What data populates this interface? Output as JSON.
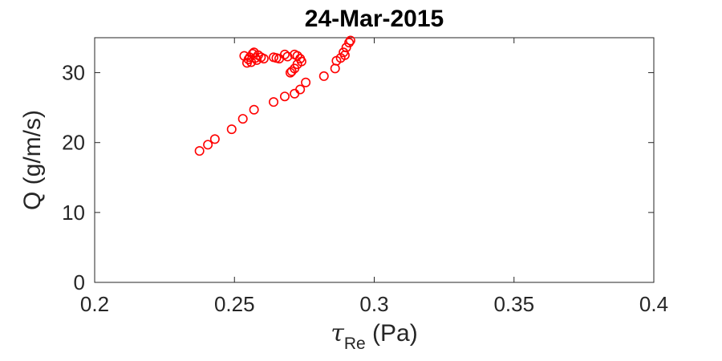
{
  "chart_data": {
    "type": "scatter",
    "title": "24-Mar-2015",
    "xlabel": {
      "symbol": "τ",
      "subscript": "Re",
      "unit": " (Pa)"
    },
    "ylabel": "Q (g/m/s)",
    "xlim": [
      0.2,
      0.4
    ],
    "ylim": [
      0,
      35
    ],
    "xticks": [
      0.2,
      0.25,
      0.3,
      0.35,
      0.4
    ],
    "xtick_labels": [
      "0.2",
      "0.25",
      "0.3",
      "0.35",
      "0.4"
    ],
    "yticks": [
      0,
      10,
      20,
      30
    ],
    "ytick_labels": [
      "0",
      "10",
      "20",
      "30"
    ],
    "grid": false,
    "marker": "circle-open",
    "color": "#ff0000",
    "series": [
      {
        "points": [
          [
            0.2375,
            18.8
          ],
          [
            0.2405,
            19.7
          ],
          [
            0.243,
            20.5
          ],
          [
            0.249,
            21.9
          ],
          [
            0.253,
            23.4
          ],
          [
            0.257,
            24.7
          ],
          [
            0.264,
            25.8
          ],
          [
            0.268,
            26.6
          ],
          [
            0.2715,
            27.0
          ],
          [
            0.2735,
            27.6
          ],
          [
            0.2755,
            28.6
          ],
          [
            0.282,
            29.5
          ],
          [
            0.286,
            30.6
          ],
          [
            0.2865,
            31.7
          ],
          [
            0.288,
            32.1
          ],
          [
            0.289,
            32.9
          ],
          [
            0.2895,
            32.5
          ],
          [
            0.29,
            33.6
          ],
          [
            0.291,
            34.3
          ],
          [
            0.2915,
            34.6
          ],
          [
            0.2535,
            32.4
          ],
          [
            0.2545,
            31.4
          ],
          [
            0.255,
            31.9
          ],
          [
            0.2555,
            32.2
          ],
          [
            0.256,
            31.5
          ],
          [
            0.2565,
            32.7
          ],
          [
            0.257,
            32.9
          ],
          [
            0.2575,
            32.1
          ],
          [
            0.258,
            31.8
          ],
          [
            0.2585,
            32.5
          ],
          [
            0.2595,
            32.2
          ],
          [
            0.2605,
            32.0
          ],
          [
            0.264,
            32.2
          ],
          [
            0.265,
            32.1
          ],
          [
            0.266,
            32.0
          ],
          [
            0.268,
            32.6
          ],
          [
            0.269,
            32.3
          ],
          [
            0.2715,
            32.6
          ],
          [
            0.2725,
            32.4
          ],
          [
            0.2735,
            32.0
          ],
          [
            0.274,
            31.6
          ],
          [
            0.2725,
            31.2
          ],
          [
            0.2715,
            30.6
          ],
          [
            0.27,
            30.0
          ],
          [
            0.2705,
            30.2
          ]
        ]
      }
    ]
  }
}
